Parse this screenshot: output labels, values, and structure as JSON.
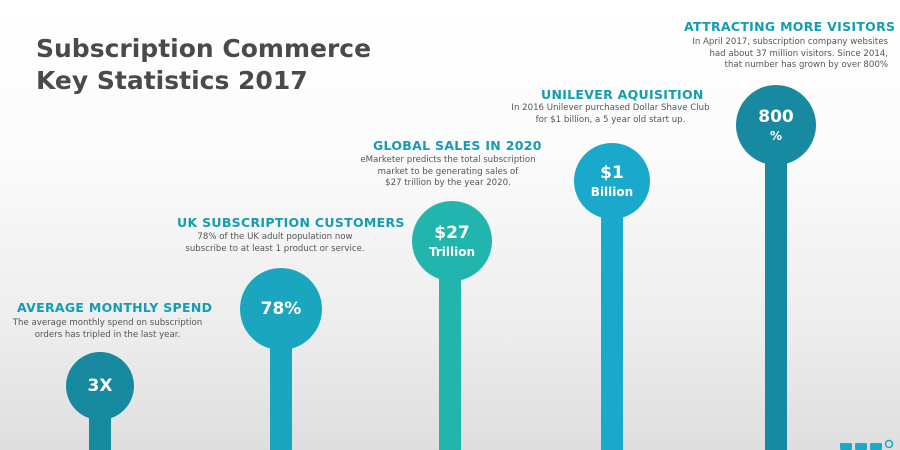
{
  "title": {
    "line1": "Subscription Commerce",
    "line2": "Key Statistics 2017"
  },
  "stats": [
    {
      "heading": "AVERAGE MONTHLY SPEND",
      "description": [
        "The average monthly spend on subscription",
        "orders has tripled in  the last year."
      ],
      "value": "3X",
      "unit": "",
      "color": "#17899e"
    },
    {
      "heading": "UK SUBSCRIPTION CUSTOMERS",
      "description": [
        "78% of the UK adult population now",
        "subscribe to at least 1 product or service."
      ],
      "value": "78%",
      "unit": "",
      "color": "#1ba6bf"
    },
    {
      "heading": "GLOBAL SALES IN 2020",
      "description": [
        "eMarketer predicts the total subscription",
        "market to be generating sales of",
        "$27 trillion  by the year 2020."
      ],
      "value": "$27",
      "unit": "Trillion",
      "color": "#22b5ad"
    },
    {
      "heading": "UNILEVER AQUISITION",
      "description": [
        "In 2016 Unilever purchased Dollar Shave Club",
        "for $1 billion, a  5 year old start up."
      ],
      "value": "$1",
      "unit": "Billion",
      "color": "#1aa9cb"
    },
    {
      "heading": "ATTRACTING  MORE VISITORS",
      "description": [
        "In April 2017, subscription company websites",
        "had about 37 million visitors. Since 2014,",
        "that number has grown by over 800%"
      ],
      "value": "800",
      "unit": "%",
      "color": "#178aa1"
    }
  ]
}
